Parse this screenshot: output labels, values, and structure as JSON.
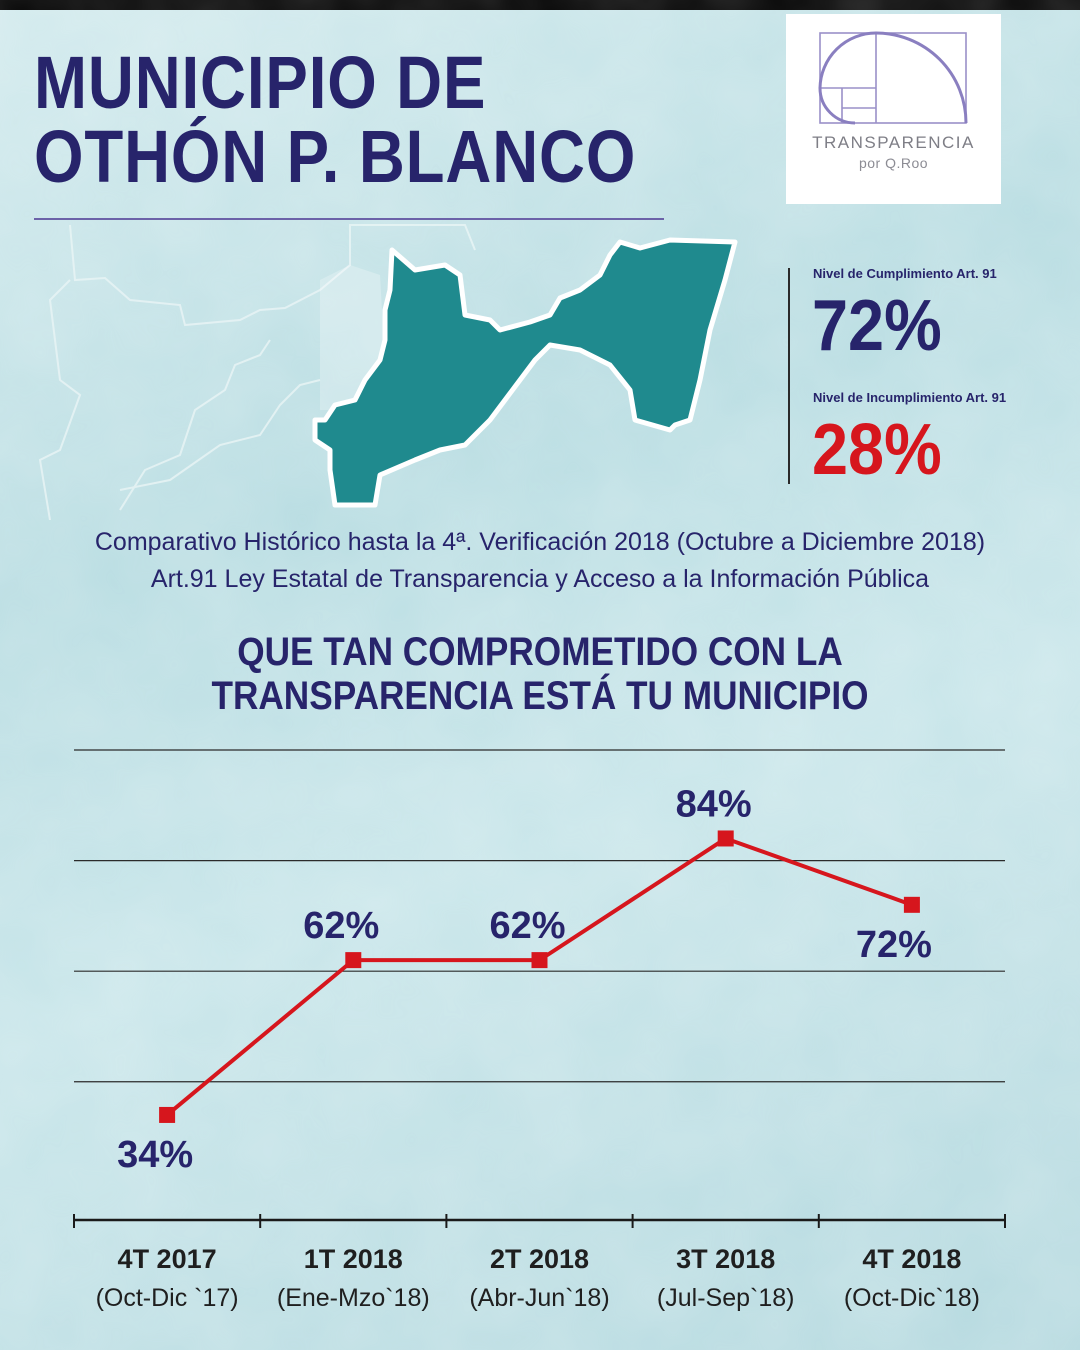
{
  "header": {
    "title_line1": "MUNICIPIO DE",
    "title_line2": "OTHÓN P. BLANCO"
  },
  "logo": {
    "icon": "golden-spiral-logo-icon",
    "name": "TRANSPARENCIA",
    "sub": "por Q.Roo"
  },
  "stats": {
    "cumplimiento_label": "Nivel de Cumplimiento Art. 91",
    "cumplimiento_value": "72%",
    "incumplimiento_label": "Nivel de Incumplimiento Art. 91",
    "incumplimiento_value": "28%"
  },
  "subtitle": {
    "line1": "Comparativo Histórico hasta la 4ª. Verificación 2018 (Octubre a Diciembre 2018)",
    "line2": "Art.91 Ley Estatal de Transparencia y Acceso a la Información Pública"
  },
  "headline": {
    "line1": "QUE TAN COMPROMETIDO CON LA",
    "line2": "TRANSPARENCIA ESTÁ TU MUNICIPIO"
  },
  "colors": {
    "navy": "#27246b",
    "red": "#d6161d",
    "teal": "#1f8a8e",
    "line": "#d6161d"
  },
  "chart_data": {
    "type": "line",
    "categories": [
      "4T 2017",
      "1T 2018",
      "2T 2018",
      "3T 2018",
      "4T 2018"
    ],
    "category_sublabels": [
      "(Oct-Dic `17)",
      "(Ene-Mzo`18)",
      "(Abr-Jun`18)",
      "(Jul-Sep`18)",
      "(Oct-Dic`18)"
    ],
    "values": [
      34,
      62,
      62,
      84,
      72
    ],
    "value_labels": [
      "34%",
      "62%",
      "62%",
      "84%",
      "72%"
    ],
    "ylim": [
      15,
      100
    ],
    "gridlines": [
      40,
      60,
      80,
      100
    ],
    "grid": true,
    "legend": "none"
  }
}
